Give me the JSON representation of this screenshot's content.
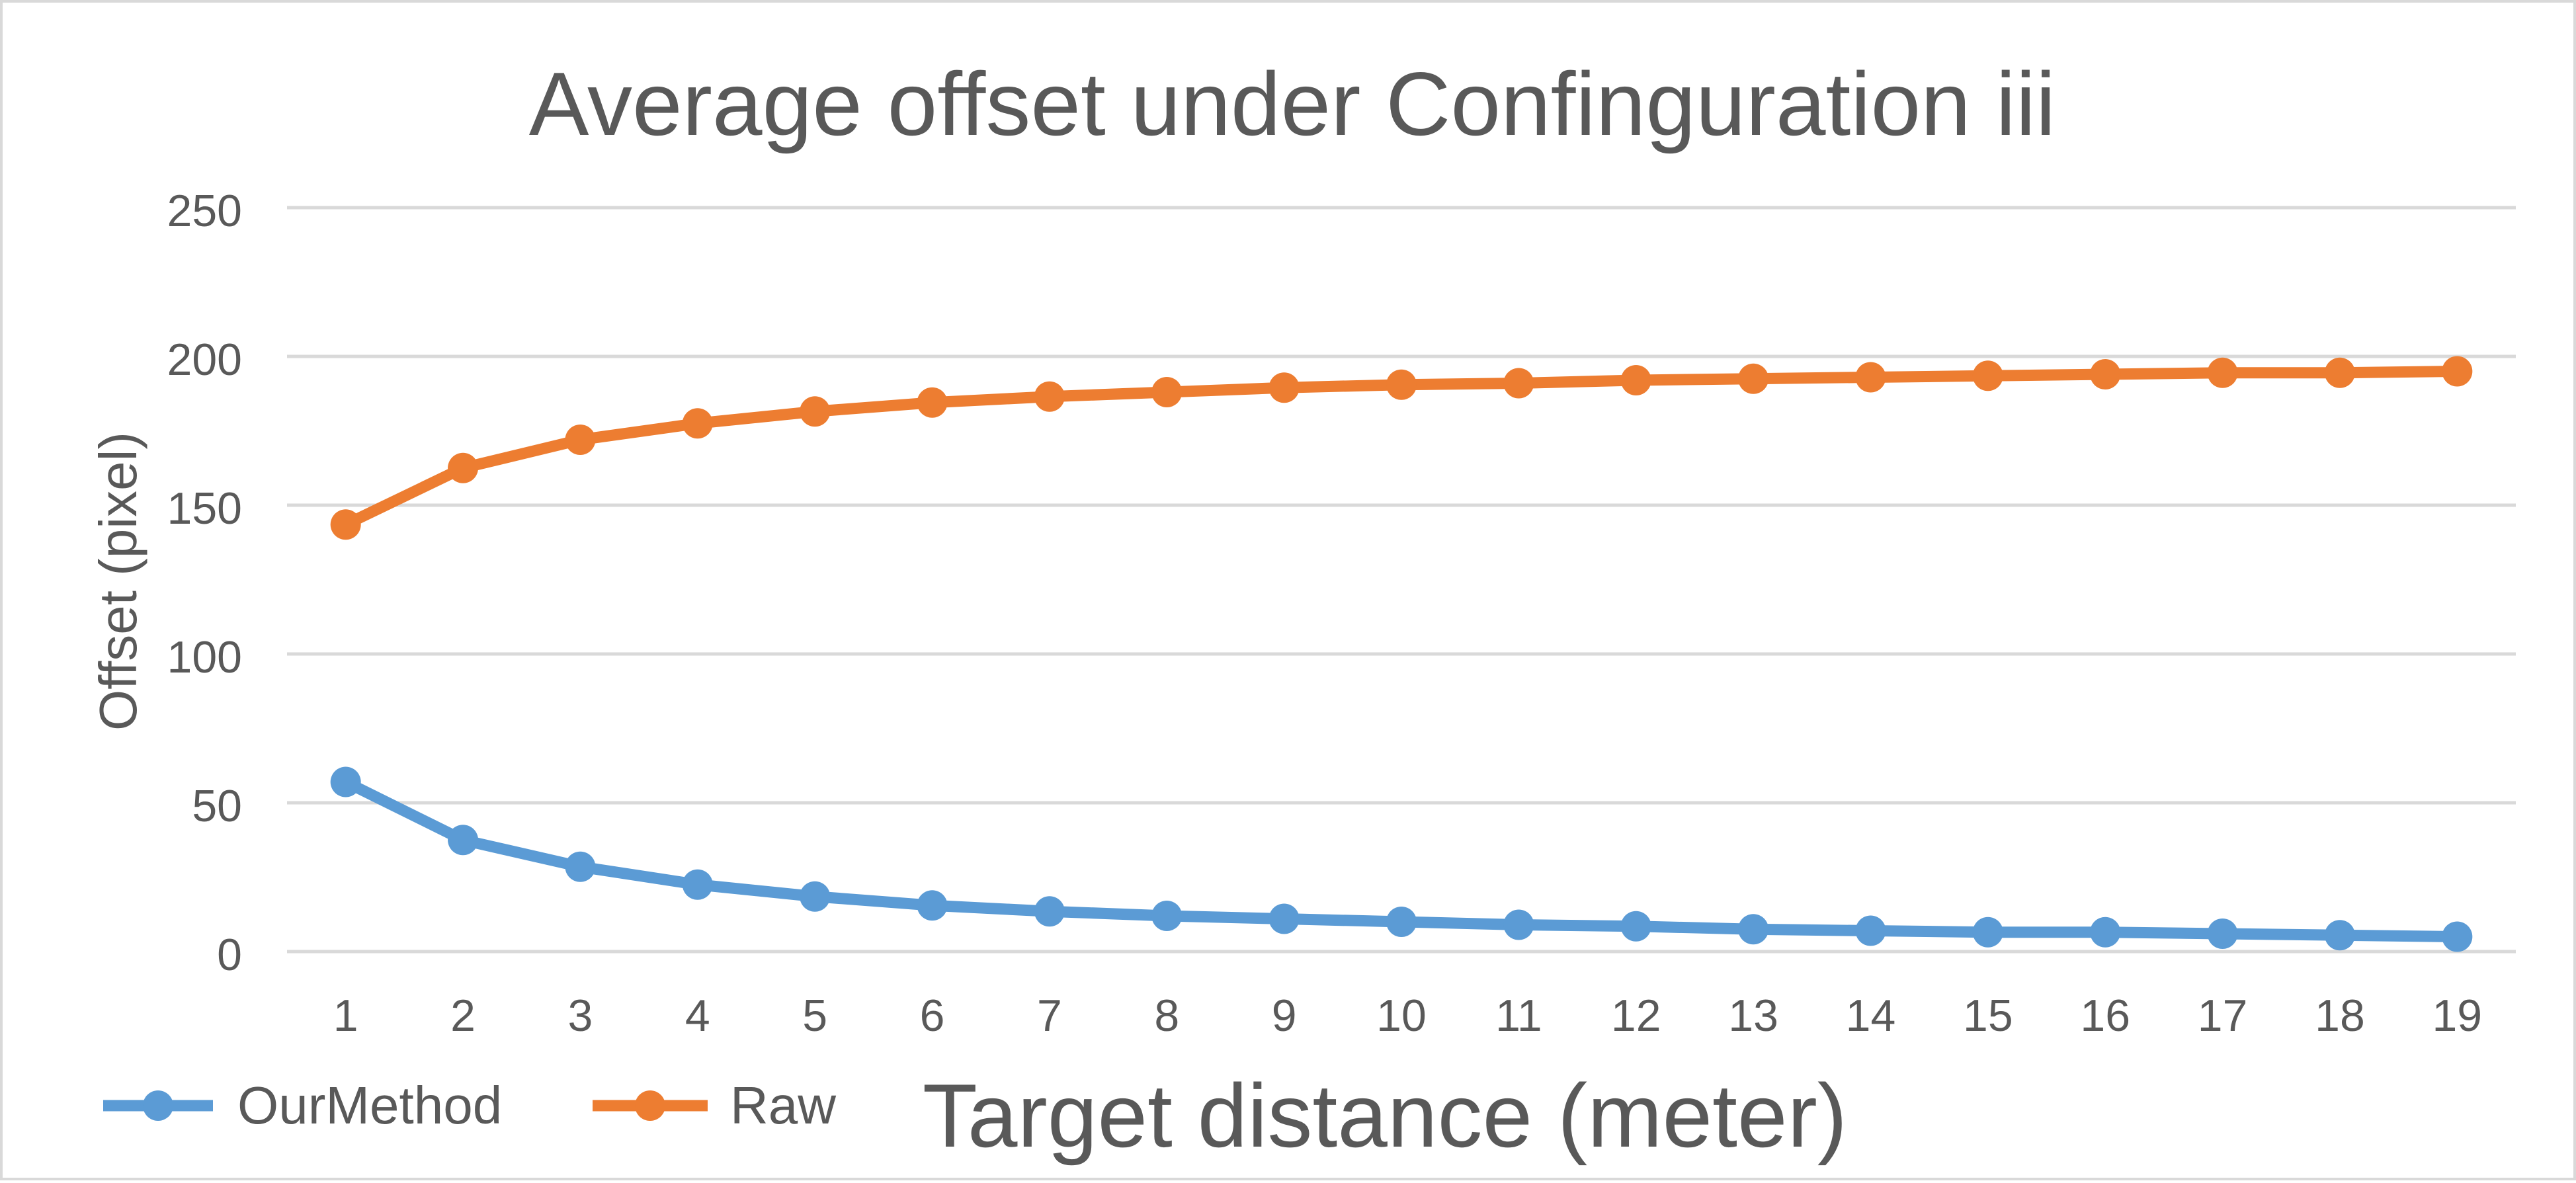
{
  "chart_data": {
    "type": "line",
    "title": "Average offset under Confinguration iii",
    "xlabel": "Target distance (meter)",
    "ylabel": "Offset (pixel)",
    "categories": [
      "1",
      "2",
      "3",
      "4",
      "5",
      "6",
      "7",
      "8",
      "9",
      "10",
      "11",
      "12",
      "13",
      "14",
      "15",
      "16",
      "17",
      "18",
      "19"
    ],
    "ylim": [
      0,
      250
    ],
    "yticks": [
      "0",
      "50",
      "100",
      "150",
      "200",
      "250"
    ],
    "grid": true,
    "legend_position": "bottom-left",
    "series": [
      {
        "name": "OurMethod",
        "color": "#5B9BD5",
        "values": [
          57,
          37.5,
          28.5,
          22.5,
          18.5,
          15.5,
          13.5,
          12,
          11,
          10,
          9,
          8.5,
          7.5,
          7,
          6.5,
          6.5,
          6,
          5.5,
          5
        ]
      },
      {
        "name": "Raw",
        "color": "#ED7D31",
        "values": [
          143.5,
          162.5,
          172,
          177.5,
          181.5,
          184.5,
          186.5,
          188,
          189.5,
          190.5,
          191,
          192,
          192.5,
          193,
          193.5,
          194,
          194.5,
          194.5,
          195
        ]
      }
    ]
  }
}
